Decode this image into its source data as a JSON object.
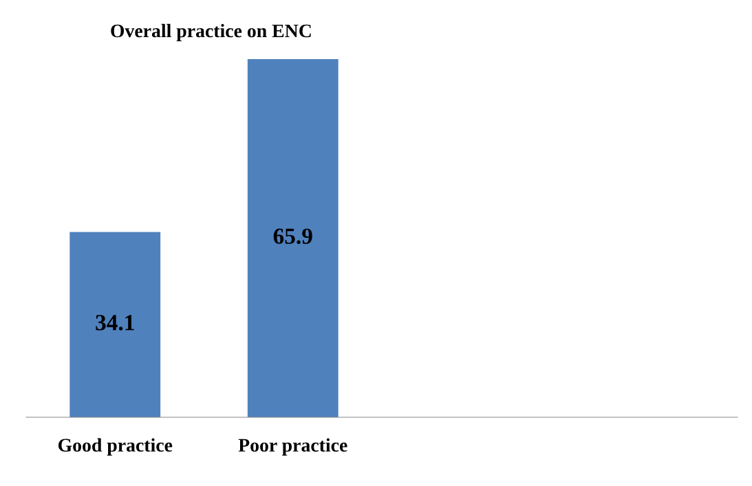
{
  "chart_data": {
    "type": "bar",
    "title": "Overall practice on ENC",
    "categories": [
      "Good practice",
      "Poor practice",
      null,
      null
    ],
    "values": [
      34.1,
      65.9,
      null,
      null
    ],
    "color": "#4f81bd",
    "data_labels": true,
    "grid": false,
    "legend": false
  }
}
